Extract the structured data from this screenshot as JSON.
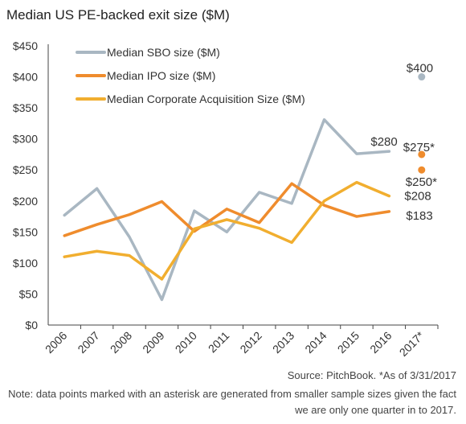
{
  "chart_data": {
    "type": "line",
    "title": "Median US PE-backed exit size ($M)",
    "categories": [
      "2006",
      "2007",
      "2008",
      "2009",
      "2010",
      "2011",
      "2012",
      "2013",
      "2014",
      "2015",
      "2016",
      "2017*"
    ],
    "y_ticks": [
      "$0",
      "$50",
      "$100",
      "$150",
      "$200",
      "$250",
      "$300",
      "$350",
      "$400",
      "$450"
    ],
    "ylim": [
      0,
      450
    ],
    "grid": false,
    "legend_position": "top-left",
    "series": [
      {
        "name": "Median SBO size ($M)",
        "color": "#a9b7c2",
        "values": [
          177,
          220,
          142,
          41,
          184,
          150,
          214,
          196,
          331,
          276,
          280,
          null
        ],
        "end_label": "$280"
      },
      {
        "name": "Median IPO size ($M)",
        "color": "#ef8c2d",
        "values": [
          144,
          162,
          178,
          199,
          151,
          187,
          165,
          228,
          193,
          175,
          183,
          null
        ],
        "end_label": "$183"
      },
      {
        "name": "Median Corporate Acquisition Size ($M)",
        "color": "#f1ae2f",
        "values": [
          110,
          119,
          112,
          74,
          155,
          170,
          156,
          133,
          200,
          230,
          208,
          null
        ],
        "end_label": "$208"
      }
    ],
    "point_annotations": [
      {
        "series": "Median SBO size ($M)",
        "category": "2017*",
        "value": 400,
        "label": "$400",
        "color": "#a9b7c2"
      },
      {
        "series": "Median IPO size ($M)",
        "category": "2017*",
        "value": 275,
        "label": "$275*",
        "color": "#ef8c2d"
      },
      {
        "series": "Median Corporate Acquisition Size ($M)",
        "category": "2017*",
        "value": 250,
        "label": "$250*",
        "color": "#ef8c2d"
      }
    ]
  },
  "footer": {
    "source": "Source: PitchBook. *As of 3/31/2017",
    "note": "Note: data points marked with an asterisk are generated from smaller sample sizes given the fact we are only one quarter in to 2017."
  }
}
